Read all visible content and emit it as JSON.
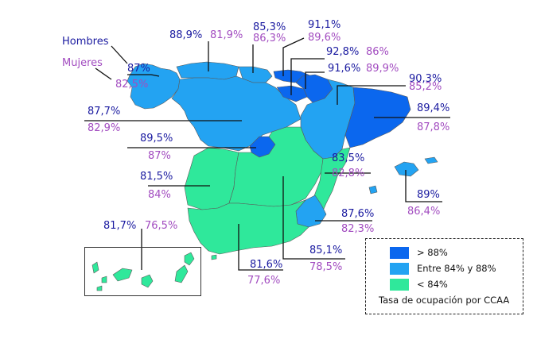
{
  "colors": {
    "high": "#0b67ee",
    "mid": "#23a3f2",
    "low": "#2fe89b",
    "men_text": "#1a1aa0",
    "women_text": "#a24cc0"
  },
  "series_labels": {
    "men": "Hombres",
    "women": "Mujeres"
  },
  "legend": {
    "items": [
      {
        "label": "> 88%",
        "color": "#0b67ee"
      },
      {
        "label": "Entre 84% y 88%",
        "color": "#23a3f2"
      },
      {
        "label": "< 84%",
        "color": "#2fe89b"
      }
    ],
    "title": "Tasa de ocupación por CCAA"
  },
  "chart_data": {
    "type": "table",
    "regions": [
      {
        "men": "87%",
        "women": "82,5%",
        "category": "Entre 84% y 88%"
      },
      {
        "men": "88,9%",
        "women": "81,9%",
        "category": "Entre 84% y 88%"
      },
      {
        "men": "85,3%",
        "women": "86,3%",
        "category": "Entre 84% y 88%"
      },
      {
        "men": "91,1%",
        "women": "89,6%",
        "category": "> 88%"
      },
      {
        "men": "92,8%",
        "women": "86%",
        "category": "> 88%"
      },
      {
        "men": "91,6%",
        "women": "89,9%",
        "category": "> 88%"
      },
      {
        "men": "90,3%",
        "women": "85,2%",
        "category": "Entre 84% y 88%"
      },
      {
        "men": "89,4%",
        "women": "87,8%",
        "category": "> 88%"
      },
      {
        "men": "87,7%",
        "women": "82,9%",
        "category": "Entre 84% y 88%"
      },
      {
        "men": "89,5%",
        "women": "87%",
        "category": "> 88%"
      },
      {
        "men": "83,5%",
        "women": "82,8%",
        "category": "< 84%"
      },
      {
        "men": "89%",
        "women": "86,4%",
        "category": "Entre 84% y 88%"
      },
      {
        "men": "81,5%",
        "women": "84%",
        "category": "< 84%"
      },
      {
        "men": "87,6%",
        "women": "82,3%",
        "category": "Entre 84% y 88%"
      },
      {
        "men": "81,7%",
        "women": "76,5%",
        "category": "< 84%"
      },
      {
        "men": "81,6%",
        "women": "77,6%",
        "category": "< 84%"
      },
      {
        "men": "85,1%",
        "women": "78,5%",
        "category": "< 84%"
      }
    ]
  }
}
